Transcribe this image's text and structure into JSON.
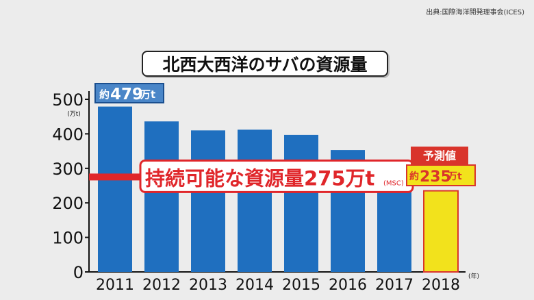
{
  "source": "出典:国際海洋開発理事会(ICES)",
  "chart_data": {
    "type": "bar",
    "title": "北西大西洋のサバの資源量",
    "y_unit": "(万t)",
    "x_unit": "(年)",
    "categories": [
      "2011",
      "2012",
      "2013",
      "2014",
      "2015",
      "2016",
      "2017",
      "2018"
    ],
    "values": [
      479,
      436,
      410,
      412,
      397,
      353,
      310,
      235
    ],
    "ylim": [
      0,
      500
    ],
    "yticks": [
      0,
      100,
      200,
      300,
      400,
      500
    ],
    "bar_colors": [
      "#1f6fbf",
      "#1f6fbf",
      "#1f6fbf",
      "#1f6fbf",
      "#1f6fbf",
      "#1f6fbf",
      "#1f6fbf",
      "#f2e21c"
    ],
    "callout_first": {
      "prefix": "約",
      "value": "479",
      "unit": "万t"
    },
    "forecast": {
      "label": "予測値",
      "prefix": "約",
      "value": "235",
      "unit": "万t"
    },
    "reference_line": {
      "value": 275,
      "label": "持続可能な資源量275万t",
      "note": "(MSC)",
      "color": "#e0262a"
    }
  }
}
